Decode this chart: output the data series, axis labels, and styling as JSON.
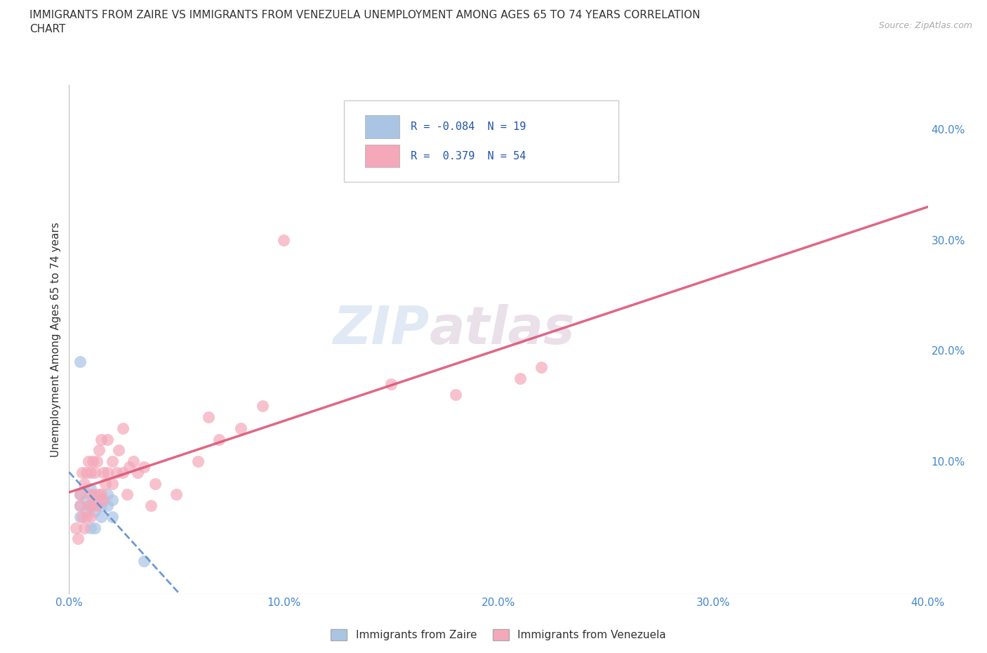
{
  "title_line1": "IMMIGRANTS FROM ZAIRE VS IMMIGRANTS FROM VENEZUELA UNEMPLOYMENT AMONG AGES 65 TO 74 YEARS CORRELATION",
  "title_line2": "CHART",
  "source": "Source: ZipAtlas.com",
  "ylabel": "Unemployment Among Ages 65 to 74 years",
  "xlim": [
    0.0,
    0.4
  ],
  "ylim": [
    -0.02,
    0.44
  ],
  "xticks": [
    0.0,
    0.1,
    0.2,
    0.3,
    0.4
  ],
  "yticks": [
    0.0,
    0.1,
    0.2,
    0.3,
    0.4
  ],
  "xtick_labels": [
    "0.0%",
    "10.0%",
    "20.0%",
    "30.0%",
    "40.0%"
  ],
  "ytick_labels_right": [
    "",
    "10.0%",
    "20.0%",
    "30.0%",
    "40.0%"
  ],
  "grid_color": "#cccccc",
  "watermark_zip": "ZIP",
  "watermark_atlas": "atlas",
  "legend_label_zaire": "Immigrants from Zaire",
  "legend_label_venezuela": "Immigrants from Venezuela",
  "zaire_color": "#aac4e4",
  "venezuela_color": "#f4a8ba",
  "zaire_R": -0.084,
  "zaire_N": 19,
  "venezuela_R": 0.379,
  "venezuela_N": 54,
  "zaire_line_color": "#5588cc",
  "venezuela_line_color": "#dd5577",
  "background_color": "#ffffff",
  "zaire_points_x": [
    0.005,
    0.005,
    0.005,
    0.008,
    0.008,
    0.01,
    0.01,
    0.01,
    0.012,
    0.012,
    0.015,
    0.015,
    0.015,
    0.018,
    0.018,
    0.02,
    0.02,
    0.005,
    0.035
  ],
  "zaire_points_y": [
    0.05,
    0.06,
    0.07,
    0.055,
    0.065,
    0.04,
    0.06,
    0.075,
    0.04,
    0.055,
    0.05,
    0.06,
    0.065,
    0.06,
    0.07,
    0.05,
    0.065,
    0.19,
    0.01
  ],
  "venezuela_points_x": [
    0.003,
    0.004,
    0.005,
    0.005,
    0.006,
    0.006,
    0.007,
    0.007,
    0.008,
    0.008,
    0.009,
    0.009,
    0.01,
    0.01,
    0.01,
    0.011,
    0.011,
    0.012,
    0.012,
    0.013,
    0.013,
    0.014,
    0.014,
    0.015,
    0.015,
    0.016,
    0.016,
    0.017,
    0.018,
    0.018,
    0.02,
    0.02,
    0.022,
    0.023,
    0.025,
    0.025,
    0.027,
    0.028,
    0.03,
    0.032,
    0.035,
    0.038,
    0.04,
    0.05,
    0.06,
    0.065,
    0.07,
    0.08,
    0.09,
    0.1,
    0.15,
    0.18,
    0.21,
    0.22
  ],
  "venezuela_points_y": [
    0.04,
    0.03,
    0.06,
    0.07,
    0.05,
    0.09,
    0.04,
    0.08,
    0.05,
    0.09,
    0.06,
    0.1,
    0.05,
    0.07,
    0.09,
    0.06,
    0.1,
    0.07,
    0.09,
    0.06,
    0.1,
    0.07,
    0.11,
    0.07,
    0.12,
    0.065,
    0.09,
    0.08,
    0.09,
    0.12,
    0.08,
    0.1,
    0.09,
    0.11,
    0.09,
    0.13,
    0.07,
    0.095,
    0.1,
    0.09,
    0.095,
    0.06,
    0.08,
    0.07,
    0.1,
    0.14,
    0.12,
    0.13,
    0.15,
    0.3,
    0.17,
    0.16,
    0.175,
    0.185
  ]
}
